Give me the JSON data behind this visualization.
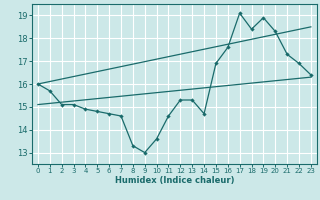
{
  "xlabel": "Humidex (Indice chaleur)",
  "xlim": [
    -0.5,
    23.5
  ],
  "ylim": [
    12.5,
    19.5
  ],
  "yticks": [
    13,
    14,
    15,
    16,
    17,
    18,
    19
  ],
  "xticks": [
    0,
    1,
    2,
    3,
    4,
    5,
    6,
    7,
    8,
    9,
    10,
    11,
    12,
    13,
    14,
    15,
    16,
    17,
    18,
    19,
    20,
    21,
    22,
    23
  ],
  "bg_color": "#cce8e8",
  "grid_color": "#ffffff",
  "line_color": "#1a6b6b",
  "line1_x": [
    0,
    1,
    2,
    3,
    4,
    5,
    6,
    7,
    8,
    9,
    10,
    11,
    12,
    13,
    14,
    15,
    16,
    17,
    18,
    19,
    20,
    21,
    22,
    23
  ],
  "line1_y": [
    16.0,
    15.7,
    15.1,
    15.1,
    14.9,
    14.8,
    14.7,
    14.6,
    13.3,
    13.0,
    13.6,
    14.6,
    15.3,
    15.3,
    14.7,
    16.9,
    17.6,
    19.1,
    18.4,
    18.9,
    18.3,
    17.3,
    16.9,
    16.4
  ],
  "line2_x": [
    0,
    23
  ],
  "line2_y": [
    16.0,
    18.5
  ],
  "line3_x": [
    0,
    23
  ],
  "line3_y": [
    15.1,
    16.3
  ]
}
